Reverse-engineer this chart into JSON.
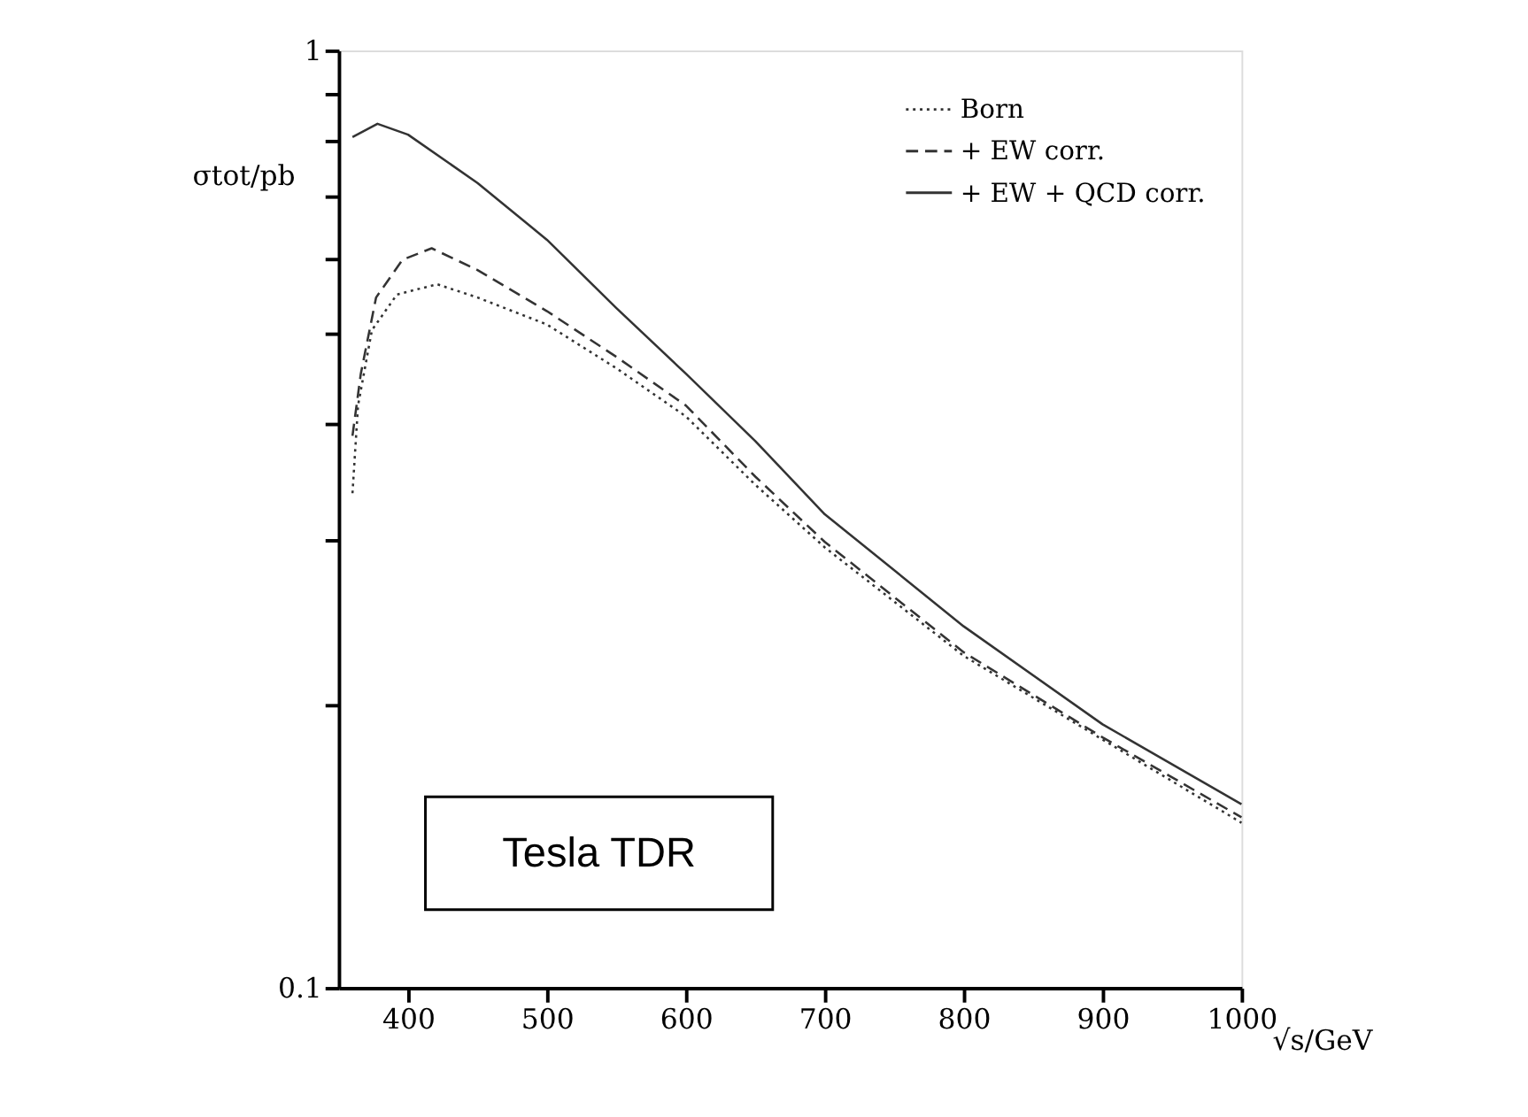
{
  "chart_data": {
    "type": "line",
    "xlabel": "√s/GeV",
    "ylabel": "σtot/pb",
    "log": "y",
    "xlim": [
      350,
      1000
    ],
    "xticks": [
      400,
      500,
      600,
      700,
      800,
      900,
      1000
    ],
    "ylim": [
      0.1,
      1
    ],
    "yticks": [
      0.1,
      {
        "value": 0.2,
        "label": null
      },
      {
        "value": 0.3,
        "label": null
      },
      {
        "value": 0.4,
        "label": null
      },
      {
        "value": 0.5,
        "label": null
      },
      {
        "value": 0.6,
        "label": null
      },
      {
        "value": 0.7,
        "label": null
      },
      {
        "value": 0.8,
        "label": null
      },
      {
        "value": 0.9,
        "label": null
      },
      1
    ],
    "grid": false,
    "legend": "top right",
    "marker": "none",
    "annotations": [
      "Tesla TDR"
    ],
    "series": [
      {
        "name": "Born",
        "color": "#333333",
        "line_style": "dotted",
        "x": [
          360,
          364,
          374,
          392,
          421,
          450,
          500,
          550,
          600,
          650,
          700,
          800,
          900,
          1000
        ],
        "values": [
          0.337,
          0.418,
          0.503,
          0.549,
          0.563,
          0.545,
          0.51,
          0.458,
          0.407,
          0.344,
          0.295,
          0.226,
          0.184,
          0.15
        ]
      },
      {
        "name": "+ EW corr.",
        "color": "#333333",
        "line_style": "dashed",
        "x": [
          360,
          366,
          377,
          396,
          417,
          450,
          500,
          550,
          600,
          650,
          700,
          800,
          900,
          1000
        ],
        "values": [
          0.388,
          0.452,
          0.545,
          0.598,
          0.615,
          0.583,
          0.527,
          0.471,
          0.418,
          0.351,
          0.299,
          0.228,
          0.185,
          0.152
        ]
      },
      {
        "name": "+ EW + QCD corr.",
        "color": "#333333",
        "line_style": "solid",
        "x": [
          360,
          378,
          400,
          450,
          500,
          550,
          600,
          650,
          700,
          800,
          900,
          1000
        ],
        "values": [
          0.808,
          0.835,
          0.813,
          0.722,
          0.628,
          0.531,
          0.452,
          0.383,
          0.32,
          0.243,
          0.191,
          0.157
        ]
      }
    ]
  }
}
